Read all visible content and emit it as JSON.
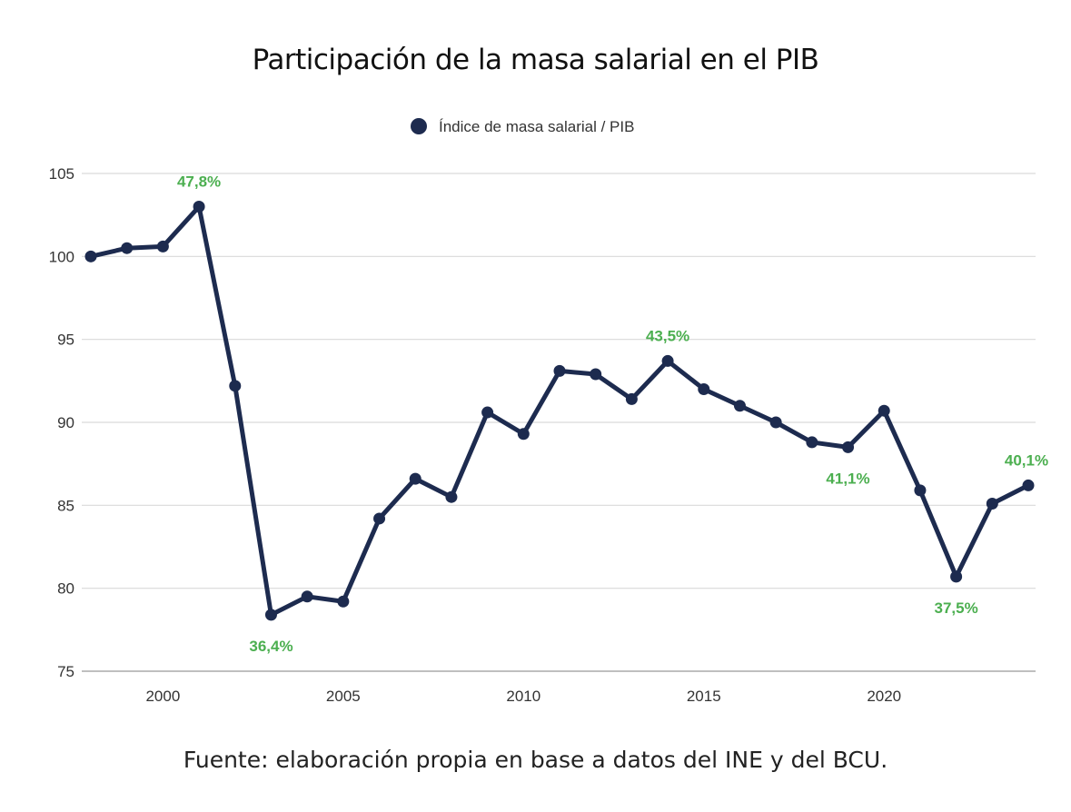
{
  "title": "Participación de la masa salarial en el PIB",
  "source": "Fuente: elaboración propia en base a datos del INE y del BCU.",
  "colors": {
    "series": "#1d2b4f",
    "annotation": "#4caf50",
    "grid": "#d9d9d9"
  },
  "chart_data": {
    "type": "line",
    "title": "Participación de la masa salarial en el PIB",
    "xlabel": "",
    "ylabel": "",
    "xlim": [
      1998,
      2024
    ],
    "ylim": [
      75,
      105
    ],
    "x_ticks": [
      2000,
      2005,
      2010,
      2015,
      2020
    ],
    "y_ticks": [
      75,
      80,
      85,
      90,
      95,
      100,
      105
    ],
    "grid": true,
    "legend_position": "top-center",
    "series": [
      {
        "name": "Índice de masa salarial / PIB",
        "x": [
          1998,
          1999,
          2000,
          2001,
          2002,
          2003,
          2004,
          2005,
          2006,
          2007,
          2008,
          2009,
          2010,
          2011,
          2012,
          2013,
          2014,
          2015,
          2016,
          2017,
          2018,
          2019,
          2020,
          2021,
          2022,
          2023,
          2024
        ],
        "values": [
          100.0,
          100.5,
          100.6,
          103.0,
          92.2,
          78.4,
          79.5,
          79.2,
          84.2,
          86.6,
          85.5,
          90.6,
          89.3,
          93.1,
          92.9,
          91.4,
          93.7,
          92.0,
          91.0,
          90.0,
          88.8,
          88.5,
          90.7,
          85.9,
          80.7,
          85.1,
          86.2
        ]
      }
    ],
    "annotations": [
      {
        "x": 2001,
        "y": 103.0,
        "text": "47,8%",
        "position": "above"
      },
      {
        "x": 2003,
        "y": 78.4,
        "text": "36,4%",
        "position": "below"
      },
      {
        "x": 2014,
        "y": 93.7,
        "text": "43,5%",
        "position": "above"
      },
      {
        "x": 2019,
        "y": 88.5,
        "text": "41,1%",
        "position": "below"
      },
      {
        "x": 2022,
        "y": 80.7,
        "text": "37,5%",
        "position": "below"
      },
      {
        "x": 2024,
        "y": 86.2,
        "text": "40,1%",
        "position": "above"
      }
    ]
  }
}
